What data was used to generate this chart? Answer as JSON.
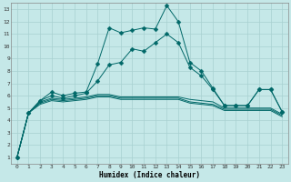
{
  "xlabel": "Humidex (Indice chaleur)",
  "bg_color": "#c5e8e8",
  "grid_color": "#a8d0d0",
  "line_color": "#006868",
  "xlim": [
    -0.5,
    23.5
  ],
  "ylim": [
    0.5,
    13.5
  ],
  "xticks": [
    0,
    1,
    2,
    3,
    4,
    5,
    6,
    7,
    8,
    9,
    10,
    11,
    12,
    13,
    14,
    15,
    16,
    17,
    18,
    19,
    20,
    21,
    22,
    23
  ],
  "yticks": [
    1,
    2,
    3,
    4,
    5,
    6,
    7,
    8,
    9,
    10,
    11,
    12,
    13
  ],
  "series_main": [
    1.0,
    4.6,
    5.6,
    6.3,
    6.0,
    6.2,
    6.3,
    8.6,
    11.5,
    11.1,
    11.3,
    11.5,
    11.4,
    13.3,
    12.0,
    8.7,
    8.0,
    6.6,
    5.2,
    5.2,
    5.2,
    6.5,
    6.5,
    4.7
  ],
  "series_second": [
    1.0,
    4.6,
    5.6,
    6.0,
    5.8,
    6.0,
    6.2,
    7.2,
    8.5,
    8.7,
    9.8,
    9.6,
    10.3,
    11.0,
    10.3,
    8.3,
    7.6,
    6.5,
    5.2,
    5.2,
    5.2,
    6.5,
    6.5,
    4.7
  ],
  "series_flat1": [
    1.0,
    4.6,
    5.5,
    5.8,
    5.7,
    5.8,
    5.9,
    6.1,
    6.1,
    5.9,
    5.9,
    5.9,
    5.9,
    5.9,
    5.9,
    5.7,
    5.6,
    5.5,
    5.0,
    5.0,
    5.0,
    5.0,
    5.0,
    4.5
  ],
  "series_flat2": [
    1.0,
    4.6,
    5.4,
    5.7,
    5.6,
    5.7,
    5.8,
    6.0,
    6.0,
    5.8,
    5.8,
    5.8,
    5.8,
    5.8,
    5.8,
    5.5,
    5.4,
    5.3,
    4.9,
    4.9,
    4.9,
    4.9,
    4.9,
    4.4
  ],
  "series_flat3": [
    1.0,
    4.6,
    5.3,
    5.6,
    5.5,
    5.6,
    5.7,
    5.9,
    5.9,
    5.7,
    5.7,
    5.7,
    5.7,
    5.7,
    5.7,
    5.4,
    5.3,
    5.2,
    4.8,
    4.8,
    4.8,
    4.8,
    4.8,
    4.3
  ]
}
